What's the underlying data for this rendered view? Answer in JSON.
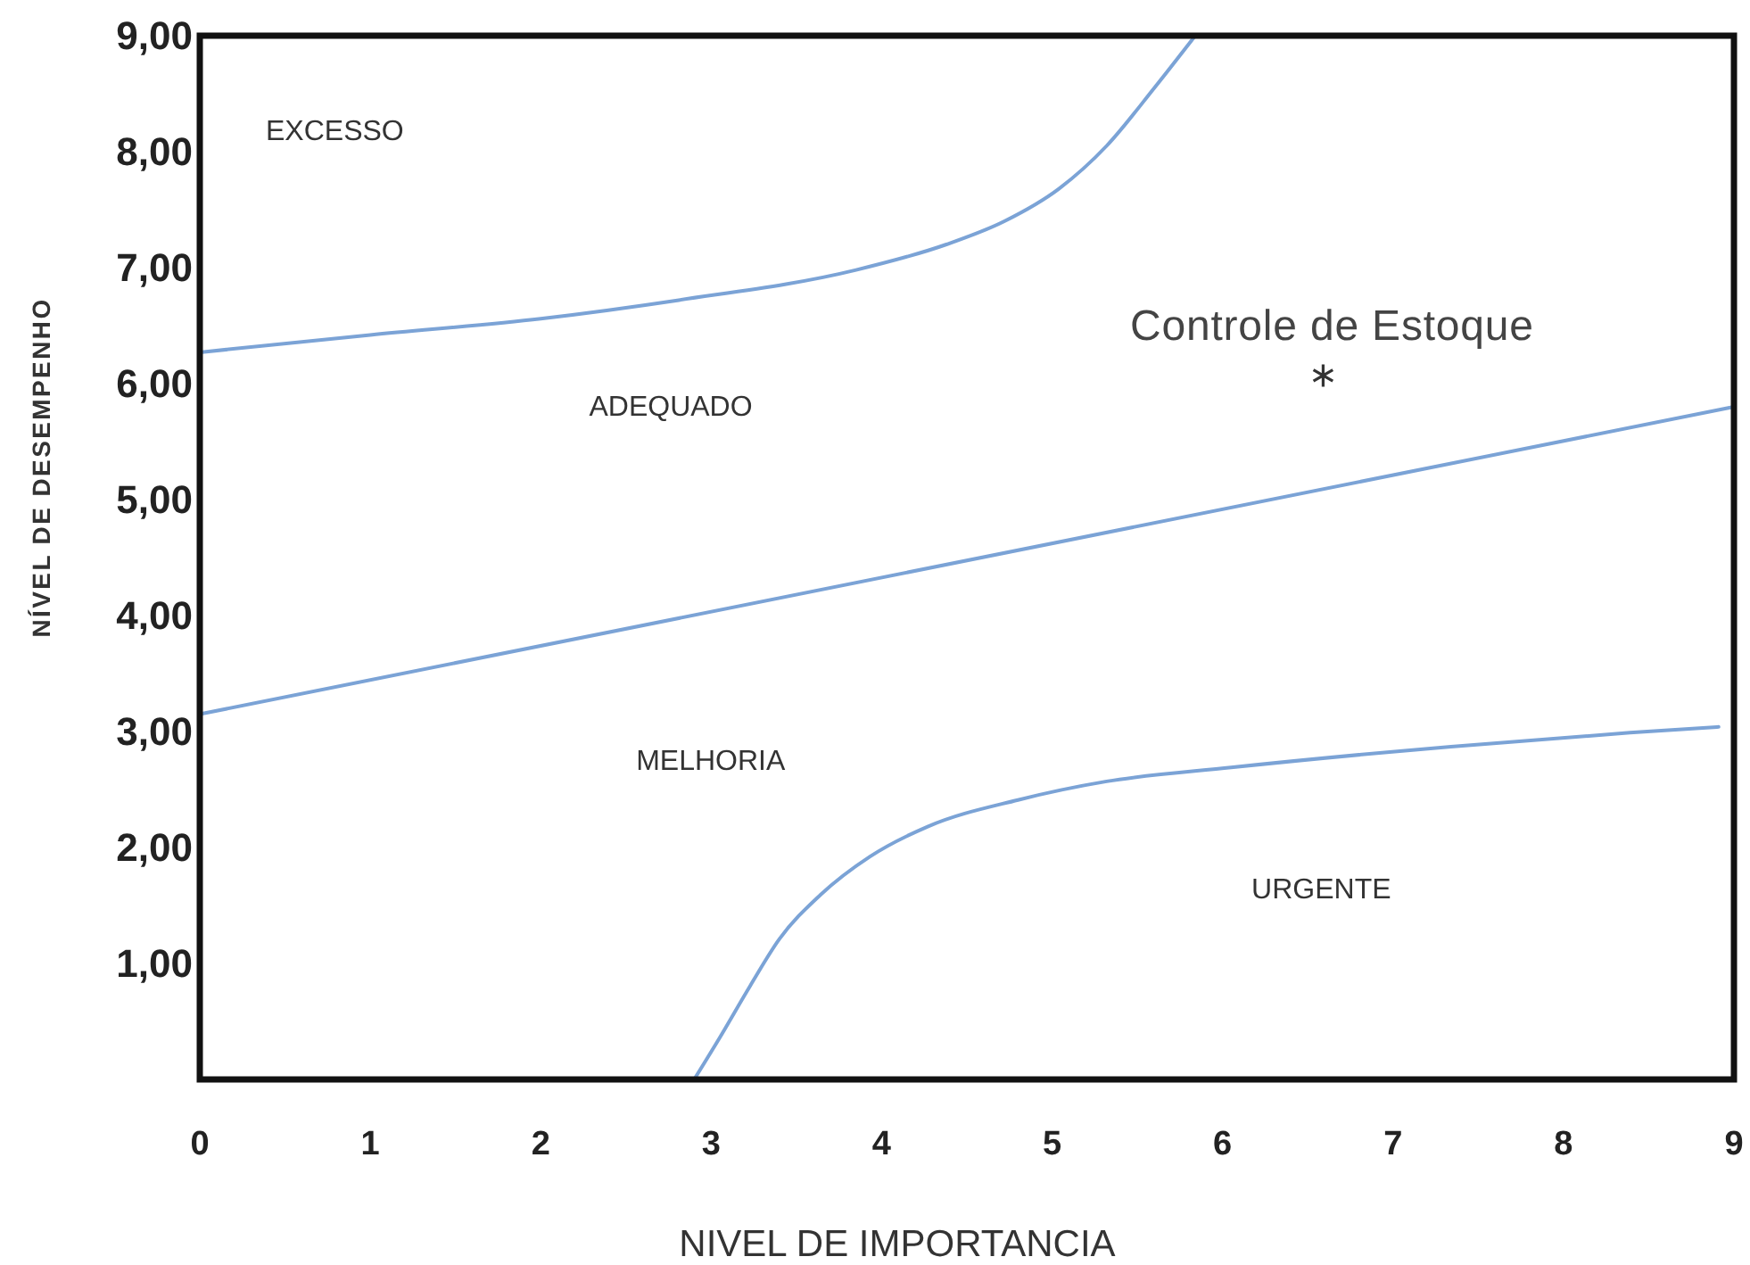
{
  "chart_data": {
    "type": "line",
    "xlabel": "NIVEL DE IMPORTANCIA",
    "ylabel": "NÍVEL DE DESEMPENHO",
    "xlim": [
      0,
      9
    ],
    "xticks": [
      0,
      1,
      2,
      3,
      4,
      5,
      6,
      7,
      8,
      9
    ],
    "ylim": [
      0,
      9
    ],
    "yticks": [
      {
        "value": 1,
        "label": "1,00"
      },
      {
        "value": 2,
        "label": "2,00"
      },
      {
        "value": 3,
        "label": "3,00"
      },
      {
        "value": 4,
        "label": "4,00"
      },
      {
        "value": 5,
        "label": "5,00"
      },
      {
        "value": 6,
        "label": "6,00"
      },
      {
        "value": 7,
        "label": "7,00"
      },
      {
        "value": 8,
        "label": "8,00"
      },
      {
        "value": 9,
        "label": "9,00"
      }
    ],
    "series": [
      {
        "color": "#7ba3d6",
        "x": [
          0,
          1,
          2,
          2.81,
          3.85,
          4.38,
          4.72,
          5.04,
          5.32,
          5.6,
          5.84
        ],
        "values": [
          6.27,
          6.42,
          6.56,
          6.72,
          6.98,
          7.2,
          7.4,
          7.68,
          8.05,
          8.55,
          9.0
        ]
      },
      {
        "color": "#7ba3d6",
        "x": [
          0,
          9
        ],
        "values": [
          3.15,
          5.8
        ]
      },
      {
        "color": "#7ba3d6",
        "x": [
          2.9,
          3.05,
          3.23,
          3.4,
          3.64,
          3.93,
          4.27,
          4.8,
          5.32,
          6.05,
          7.34,
          8.39,
          8.91
        ],
        "values": [
          0,
          0.36,
          0.81,
          1.21,
          1.59,
          1.92,
          2.18,
          2.41,
          2.57,
          2.69,
          2.87,
          2.99,
          3.04
        ]
      },
      {
        "type": "scatter",
        "name": "Controle de Estoque",
        "marker": "cross",
        "color": "#333333",
        "x": [
          6.59
        ],
        "values": [
          6.07
        ]
      }
    ],
    "annotations": [
      "EXCESSO",
      "ADEQUADO",
      "MELHORIA",
      "URGENTE"
    ]
  }
}
